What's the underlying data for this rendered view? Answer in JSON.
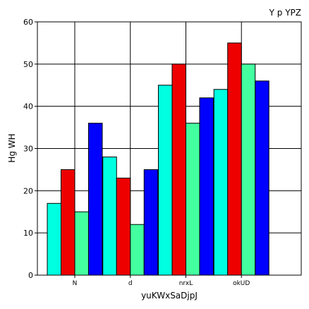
{
  "chart_data": {
    "type": "bar",
    "title": "Y p YPZ",
    "xlabel": "yuKWxSaDjpJ",
    "ylabel": "Hg WH",
    "categories": [
      "N",
      "d",
      "nrxL",
      "okUD"
    ],
    "ylim": [
      0,
      60
    ],
    "yticks": [
      0,
      10,
      20,
      30,
      40,
      50,
      60
    ],
    "grid": true,
    "series": [
      {
        "color": "#00ffe0",
        "values": [
          17,
          28,
          45,
          44
        ]
      },
      {
        "color": "#ee0000",
        "values": [
          25,
          23,
          50,
          55
        ]
      },
      {
        "color": "#44ffa0",
        "values": [
          15,
          12,
          36,
          50
        ]
      },
      {
        "color": "#0000ff",
        "values": [
          36,
          25,
          42,
          46
        ]
      }
    ]
  }
}
